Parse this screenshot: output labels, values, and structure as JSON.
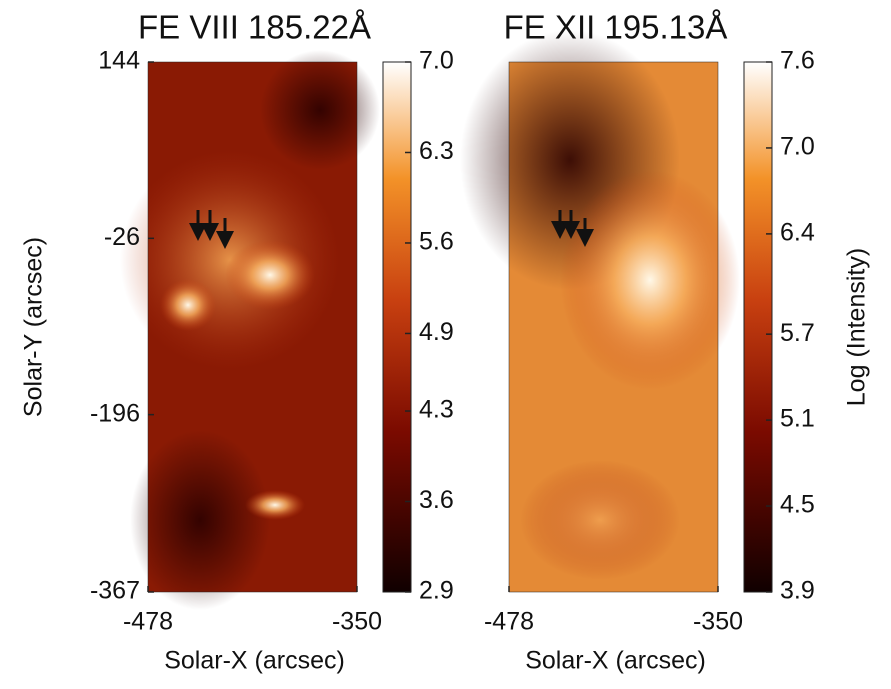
{
  "chart_data": [
    {
      "type": "image",
      "title": "FE VIII 185.22Å",
      "xlabel": "Solar-X (arcsec)",
      "ylabel": "Solar-Y (arcsec)",
      "xlim": [
        -478,
        -350
      ],
      "xticks": [
        -478,
        -350
      ],
      "ylim": [
        -367,
        144
      ],
      "yticks": [
        -367,
        -196,
        -26,
        144
      ],
      "colorbar": {
        "lim": [
          2.9,
          7.0
        ],
        "ticks": [
          2.9,
          3.6,
          4.3,
          4.9,
          5.6,
          6.3,
          {
            "value": 7,
            "label": "7.0"
          }
        ]
      }
    },
    {
      "type": "image",
      "title": "FE XII 195.13Å",
      "xlabel": "Solar-X (arcsec)",
      "xlim": [
        -478,
        -350
      ],
      "xticks": [
        -478,
        -350
      ],
      "colorbar": {
        "lim": [
          3.9,
          7.6
        ],
        "ticks": [
          3.9,
          4.5,
          5.1,
          5.7,
          6.4,
          {
            "value": 7,
            "label": "7.0"
          },
          7.6
        ],
        "label": "Log (Intensity)"
      }
    }
  ]
}
